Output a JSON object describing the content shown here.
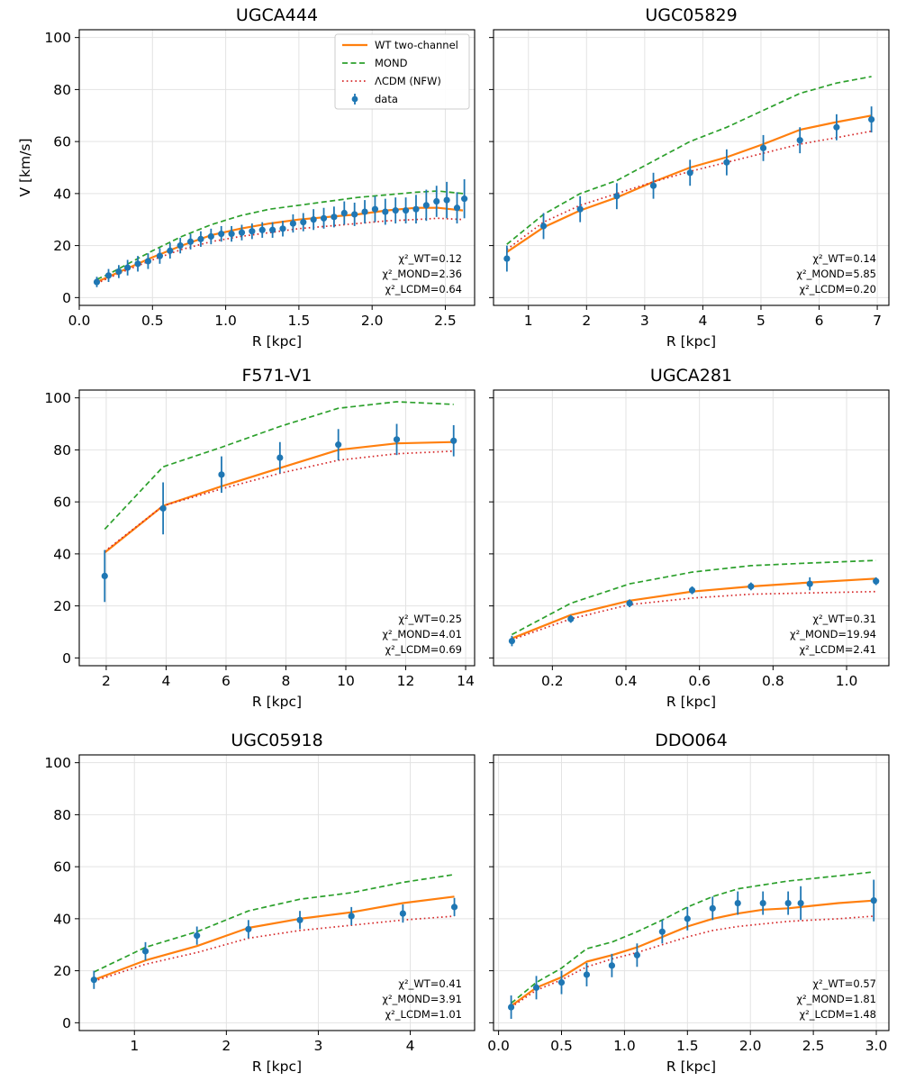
{
  "figure": {
    "legend": {
      "entries": [
        {
          "label": "WT two-channel",
          "color": "#ff7f0e",
          "style": "solid"
        },
        {
          "label": "MOND",
          "color": "#2ca02c",
          "style": "dashed"
        },
        {
          "label": "ΛCDM (NFW)",
          "color": "#d62728",
          "style": "dotted"
        },
        {
          "label": "data",
          "color": "#1f77b4",
          "style": "errorbar"
        }
      ],
      "placement": "upper right of first panel"
    },
    "colors": {
      "wt": "#ff7f0e",
      "mond": "#2ca02c",
      "lcdm": "#d62728",
      "data": "#1f77b4"
    }
  },
  "chart_data": [
    {
      "type": "line",
      "title": "UGCA444",
      "xlabel": "R [kpc]",
      "ylabel": "V [km/s]",
      "xlim": [
        0.0,
        2.7
      ],
      "ylim": [
        -3,
        103
      ],
      "xticks": [
        "0.0",
        "0.5",
        "1.0",
        "1.5",
        "2.0",
        "2.5"
      ],
      "yticks": [
        "0",
        "20",
        "40",
        "60",
        "80",
        "100"
      ],
      "grid": true,
      "series": [
        {
          "name": "WT two-channel",
          "x": [
            0.12,
            0.2,
            0.3,
            0.5,
            0.7,
            0.9,
            1.1,
            1.3,
            1.5,
            1.7,
            1.9,
            2.1,
            2.3,
            2.45,
            2.62
          ],
          "y": [
            6,
            8,
            10.5,
            15.5,
            20,
            24,
            26.5,
            28.5,
            30,
            31,
            32,
            33.5,
            34.5,
            34.5,
            33.5
          ]
        },
        {
          "name": "MOND",
          "x": [
            0.12,
            0.2,
            0.3,
            0.5,
            0.7,
            0.9,
            1.1,
            1.3,
            1.5,
            1.7,
            1.9,
            2.1,
            2.3,
            2.45,
            2.62
          ],
          "y": [
            7,
            9,
            12,
            18,
            23.5,
            28,
            31.5,
            34,
            35.5,
            37,
            38.5,
            39.5,
            40.5,
            41,
            40
          ]
        },
        {
          "name": "ΛCDM (NFW)",
          "x": [
            0.12,
            0.2,
            0.3,
            0.5,
            0.7,
            0.9,
            1.1,
            1.3,
            1.5,
            1.7,
            1.9,
            2.1,
            2.3,
            2.45,
            2.62
          ],
          "y": [
            5.5,
            7.5,
            10,
            14.5,
            18.5,
            21.5,
            23.5,
            25,
            26.5,
            27.5,
            28.5,
            29.5,
            30,
            30.5,
            30
          ]
        },
        {
          "name": "data",
          "x": [
            0.12,
            0.2,
            0.27,
            0.33,
            0.4,
            0.47,
            0.55,
            0.62,
            0.69,
            0.76,
            0.83,
            0.9,
            0.97,
            1.04,
            1.11,
            1.18,
            1.25,
            1.32,
            1.39,
            1.46,
            1.53,
            1.6,
            1.67,
            1.74,
            1.81,
            1.88,
            1.95,
            2.02,
            2.09,
            2.16,
            2.23,
            2.3,
            2.37,
            2.44,
            2.51,
            2.58,
            2.63
          ],
          "y": [
            6,
            8.5,
            10,
            11.5,
            13,
            14,
            16,
            18,
            20,
            21.5,
            22.5,
            23.5,
            24.5,
            24.5,
            25,
            25.5,
            26,
            26,
            26.5,
            28.5,
            29,
            30,
            30.5,
            31,
            32.5,
            32,
            33,
            34,
            33,
            33.5,
            33.5,
            34,
            35.5,
            37,
            37.5,
            34.5,
            38
          ],
          "err": [
            2,
            2.5,
            2.5,
            3,
            3,
            3,
            3,
            3,
            3,
            3,
            3,
            3,
            3,
            3,
            3,
            3,
            3,
            3,
            3,
            3.5,
            3.5,
            4,
            4,
            4,
            4.5,
            4.5,
            4.5,
            5,
            5,
            5,
            5,
            5.5,
            6,
            6,
            7,
            6,
            7.5
          ]
        }
      ],
      "chi2_text": [
        "χ²_WT=0.12",
        "χ²_MOND=2.36",
        "χ²_LCDM=0.64"
      ]
    },
    {
      "type": "line",
      "title": "UGC05829",
      "xlabel": "R [kpc]",
      "ylabel": "",
      "xlim": [
        0.4,
        7.2
      ],
      "ylim": [
        -3,
        103
      ],
      "xticks": [
        "1",
        "2",
        "3",
        "4",
        "5",
        "6",
        "7"
      ],
      "yticks": [],
      "grid": true,
      "series": [
        {
          "name": "WT two-channel",
          "x": [
            0.63,
            1.26,
            1.89,
            2.52,
            3.15,
            3.78,
            4.41,
            5.04,
            5.67,
            6.3,
            6.9
          ],
          "y": [
            17.5,
            27,
            33.5,
            38.5,
            44.5,
            50,
            54,
            59,
            64.5,
            67.5,
            70
          ]
        },
        {
          "name": "MOND",
          "x": [
            0.63,
            1.26,
            1.89,
            2.52,
            3.15,
            3.78,
            4.41,
            5.04,
            5.67,
            6.3,
            6.9
          ],
          "y": [
            20.5,
            32,
            40,
            45,
            52.5,
            60,
            65.5,
            72,
            78.5,
            82.5,
            85
          ]
        },
        {
          "name": "ΛCDM (NFW)",
          "x": [
            0.63,
            1.26,
            1.89,
            2.52,
            3.15,
            3.78,
            4.41,
            5.04,
            5.67,
            6.3,
            6.9
          ],
          "y": [
            18.5,
            29,
            35.5,
            40,
            44.5,
            48.5,
            52,
            55.5,
            59,
            61.5,
            64
          ]
        },
        {
          "name": "data",
          "x": [
            0.63,
            1.26,
            1.89,
            2.52,
            3.15,
            3.78,
            4.41,
            5.04,
            5.67,
            6.3,
            6.9
          ],
          "y": [
            15,
            27.5,
            34,
            39,
            43,
            48,
            52,
            57.5,
            60.5,
            65.5,
            68.5
          ],
          "err": [
            5,
            5,
            5,
            5,
            5,
            5,
            5,
            5,
            5,
            5,
            5
          ]
        }
      ],
      "chi2_text": [
        "χ²_WT=0.14",
        "χ²_MOND=5.85",
        "χ²_LCDM=0.20"
      ]
    },
    {
      "type": "line",
      "title": "F571-V1",
      "xlabel": "R [kpc]",
      "ylabel": "",
      "xlim": [
        1.1,
        14.3
      ],
      "ylim": [
        -3,
        103
      ],
      "xticks": [
        "2",
        "4",
        "6",
        "8",
        "10",
        "12",
        "14"
      ],
      "yticks": [
        "0",
        "20",
        "40",
        "60",
        "80",
        "100"
      ],
      "grid": true,
      "series": [
        {
          "name": "WT two-channel",
          "x": [
            1.95,
            3.9,
            5.85,
            7.8,
            9.75,
            11.7,
            13.6
          ],
          "y": [
            40.5,
            58.5,
            66,
            73,
            80,
            82.5,
            83
          ]
        },
        {
          "name": "MOND",
          "x": [
            1.95,
            3.9,
            5.85,
            7.8,
            9.75,
            11.7,
            13.6
          ],
          "y": [
            49.5,
            73.5,
            81,
            89,
            96,
            98.5,
            97.5
          ]
        },
        {
          "name": "ΛCDM (NFW)",
          "x": [
            1.95,
            3.9,
            5.85,
            7.8,
            9.75,
            11.7,
            13.6
          ],
          "y": [
            41,
            58.5,
            65,
            71,
            76,
            78.5,
            79.5
          ]
        },
        {
          "name": "data",
          "x": [
            1.95,
            3.9,
            5.85,
            7.8,
            9.75,
            11.7,
            13.6
          ],
          "y": [
            31.5,
            57.5,
            70.5,
            77,
            82,
            84,
            83.5
          ],
          "err": [
            10,
            10,
            7,
            6,
            6,
            6,
            6
          ]
        }
      ],
      "chi2_text": [
        "χ²_WT=0.25",
        "χ²_MOND=4.01",
        "χ²_LCDM=0.69"
      ]
    },
    {
      "type": "line",
      "title": "UGCA281",
      "xlabel": "R [kpc]",
      "ylabel": "",
      "xlim": [
        0.04,
        1.115
      ],
      "ylim": [
        -3,
        103
      ],
      "xticks": [
        "0.2",
        "0.4",
        "0.6",
        "0.8",
        "1.0"
      ],
      "yticks": [],
      "grid": true,
      "series": [
        {
          "name": "WT two-channel",
          "x": [
            0.09,
            0.25,
            0.41,
            0.58,
            0.74,
            0.9,
            1.08
          ],
          "y": [
            7.5,
            16.5,
            22,
            25.5,
            27.5,
            29,
            30.5
          ]
        },
        {
          "name": "MOND",
          "x": [
            0.09,
            0.25,
            0.41,
            0.58,
            0.74,
            0.9,
            1.08
          ],
          "y": [
            9,
            21,
            28.5,
            33,
            35.5,
            36.5,
            37.5
          ]
        },
        {
          "name": "ΛCDM (NFW)",
          "x": [
            0.09,
            0.25,
            0.41,
            0.58,
            0.74,
            0.9,
            1.08
          ],
          "y": [
            7,
            15,
            20.5,
            23,
            24.5,
            25,
            25.5
          ]
        },
        {
          "name": "data",
          "x": [
            0.09,
            0.25,
            0.41,
            0.58,
            0.74,
            0.9,
            1.08
          ],
          "y": [
            6.5,
            15,
            21,
            26,
            27.5,
            28.5,
            29.5
          ],
          "err": [
            2,
            1.5,
            1.5,
            1.5,
            1.5,
            2.5,
            1.5
          ]
        }
      ],
      "chi2_text": [
        "χ²_WT=0.31",
        "χ²_MOND=19.94",
        "χ²_LCDM=2.41"
      ]
    },
    {
      "type": "line",
      "title": "UGC05918",
      "xlabel": "R [kpc]",
      "ylabel": "",
      "xlim": [
        0.4,
        4.7
      ],
      "ylim": [
        -3,
        103
      ],
      "xticks": [
        "1",
        "2",
        "3",
        "4"
      ],
      "yticks": [
        "0",
        "20",
        "40",
        "60",
        "80",
        "100"
      ],
      "grid": true,
      "series": [
        {
          "name": "WT two-channel",
          "x": [
            0.56,
            1.12,
            1.68,
            2.24,
            2.8,
            3.36,
            3.92,
            4.48
          ],
          "y": [
            16.5,
            24,
            29.5,
            36.5,
            40,
            42.5,
            46,
            48.5
          ]
        },
        {
          "name": "MOND",
          "x": [
            0.56,
            1.12,
            1.68,
            2.24,
            2.8,
            3.36,
            3.92,
            4.48
          ],
          "y": [
            19.5,
            29,
            35,
            43,
            47.5,
            50,
            54,
            57
          ]
        },
        {
          "name": "ΛCDM (NFW)",
          "x": [
            0.56,
            1.12,
            1.68,
            2.24,
            2.8,
            3.36,
            3.92,
            4.48
          ],
          "y": [
            16,
            22.5,
            27,
            32.5,
            35.5,
            37.5,
            39.5,
            41
          ]
        },
        {
          "name": "data",
          "x": [
            0.56,
            1.12,
            1.68,
            2.24,
            2.8,
            3.36,
            3.92,
            4.48
          ],
          "y": [
            16.5,
            27.5,
            33.5,
            36,
            39.5,
            41,
            42,
            44.5
          ],
          "err": [
            3.5,
            3.5,
            3.5,
            3.5,
            3.5,
            3.5,
            3.5,
            3.5
          ]
        }
      ],
      "chi2_text": [
        "χ²_WT=0.41",
        "χ²_MOND=3.91",
        "χ²_LCDM=1.01"
      ]
    },
    {
      "type": "line",
      "title": "DDO064",
      "xlabel": "R [kpc]",
      "ylabel": "",
      "xlim": [
        -0.04,
        3.1
      ],
      "ylim": [
        -3,
        103
      ],
      "xticks": [
        "0.0",
        "0.5",
        "1.0",
        "1.5",
        "2.0",
        "2.5",
        "3.0"
      ],
      "yticks": [],
      "grid": true,
      "series": [
        {
          "name": "WT two-channel",
          "x": [
            0.1,
            0.3,
            0.5,
            0.7,
            0.9,
            1.1,
            1.3,
            1.5,
            1.7,
            1.9,
            2.1,
            2.3,
            2.5,
            2.7,
            2.98
          ],
          "y": [
            6.5,
            13.5,
            17.5,
            23.5,
            26,
            29,
            33,
            37,
            40,
            42,
            43.5,
            44,
            45,
            46,
            47
          ]
        },
        {
          "name": "MOND",
          "x": [
            0.1,
            0.3,
            0.5,
            0.7,
            0.9,
            1.1,
            1.3,
            1.5,
            1.7,
            1.9,
            2.1,
            2.3,
            2.5,
            2.7,
            2.98
          ],
          "y": [
            7.5,
            15.5,
            21,
            28.5,
            31,
            35,
            39.5,
            44.5,
            48.5,
            51.5,
            53,
            54.5,
            55.5,
            56.5,
            58
          ]
        },
        {
          "name": "ΛCDM (NFW)",
          "x": [
            0.1,
            0.3,
            0.5,
            0.7,
            0.9,
            1.1,
            1.3,
            1.5,
            1.7,
            1.9,
            2.1,
            2.3,
            2.5,
            2.7,
            2.98
          ],
          "y": [
            6,
            12.5,
            16.5,
            21.5,
            24.5,
            27,
            30,
            33,
            35.5,
            37,
            38,
            39,
            39.5,
            40,
            41
          ]
        },
        {
          "name": "data",
          "x": [
            0.1,
            0.3,
            0.5,
            0.7,
            0.9,
            1.1,
            1.3,
            1.5,
            1.7,
            1.9,
            2.1,
            2.3,
            2.4,
            2.98
          ],
          "y": [
            6,
            13.5,
            15.5,
            18.5,
            22,
            26,
            35,
            40,
            44,
            46,
            46,
            46,
            46,
            47
          ],
          "err": [
            4.5,
            4.5,
            4.5,
            4.5,
            4.5,
            4.5,
            4.5,
            4.5,
            4.5,
            4.5,
            4.5,
            4.5,
            6.5,
            8
          ]
        }
      ],
      "chi2_text": [
        "χ²_WT=0.57",
        "χ²_MOND=1.81",
        "χ²_LCDM=1.48"
      ]
    }
  ]
}
